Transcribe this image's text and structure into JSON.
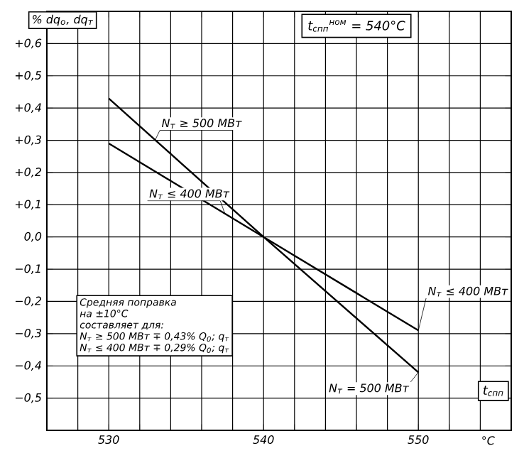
{
  "chart_data": {
    "type": "line",
    "xlabel": "t$_{спп}$",
    "ylabel": "% dq$_{о}$, dq$_{т}$",
    "x": [
      530,
      540,
      550
    ],
    "series": [
      {
        "name": "N$_{т}$ ≥ 500 МВт",
        "color": "#000000",
        "values": [
          0.43,
          0.0,
          -0.42
        ]
      },
      {
        "name": "N$_{т}$ ≤ 400 МВт",
        "color": "#000000",
        "values": [
          0.29,
          0.0,
          -0.29
        ]
      }
    ],
    "xlim": [
      526,
      556
    ],
    "ylim": [
      -0.6,
      0.7
    ],
    "xticks": [
      {
        "value": 528,
        "label": null
      },
      530,
      {
        "value": 532,
        "label": null
      },
      {
        "value": 534,
        "label": null
      },
      {
        "value": 536,
        "label": null
      },
      {
        "value": 538,
        "label": null
      },
      540,
      {
        "value": 542,
        "label": null
      },
      {
        "value": 544,
        "label": null
      },
      {
        "value": 546,
        "label": null
      },
      {
        "value": 548,
        "label": null
      },
      550,
      {
        "value": 552,
        "label": null
      },
      {
        "value": 554,
        "label": null
      }
    ],
    "yticks": [
      {
        "value": -0.5,
        "label": "−0,5"
      },
      {
        "value": -0.4,
        "label": "−0,4"
      },
      {
        "value": -0.3,
        "label": "−0,3"
      },
      {
        "value": -0.2,
        "label": "−0,2"
      },
      {
        "value": -0.1,
        "label": "−0,1"
      },
      {
        "value": 0,
        "label": "0,0"
      },
      {
        "value": 0.1,
        "label": "+0,1"
      },
      {
        "value": 0.2,
        "label": "+0,2"
      },
      {
        "value": 0.3,
        "label": "+0,3"
      },
      {
        "value": 0.4,
        "label": "+0,4"
      },
      {
        "value": 0.5,
        "label": "+0,5"
      },
      {
        "value": 0.6,
        "label": "+0,6"
      }
    ],
    "grid": true,
    "marker": "none",
    "line_style": "solid",
    "annotations": [
      "t$_{спп}$$^{ном}$ = 540°С",
      "°С",
      "Средняя поправка",
      "на ±10°С",
      "составляет для:",
      "N$_{т}$ ≥ 500 МВт ∓ 0,43% Q$_{0}$; q$_{т}$",
      "N$_{т}$ ≤ 400 МВт ∓ 0,29% Q$_{0}$; q$_{т}$",
      {
        "text": "N$_{т}$ ≤ 400 МВт",
        "x": 550,
        "y": -0.29
      },
      {
        "text": "N$_{т}$ = 500 МВт",
        "x": 550,
        "y": -0.42
      }
    ]
  }
}
